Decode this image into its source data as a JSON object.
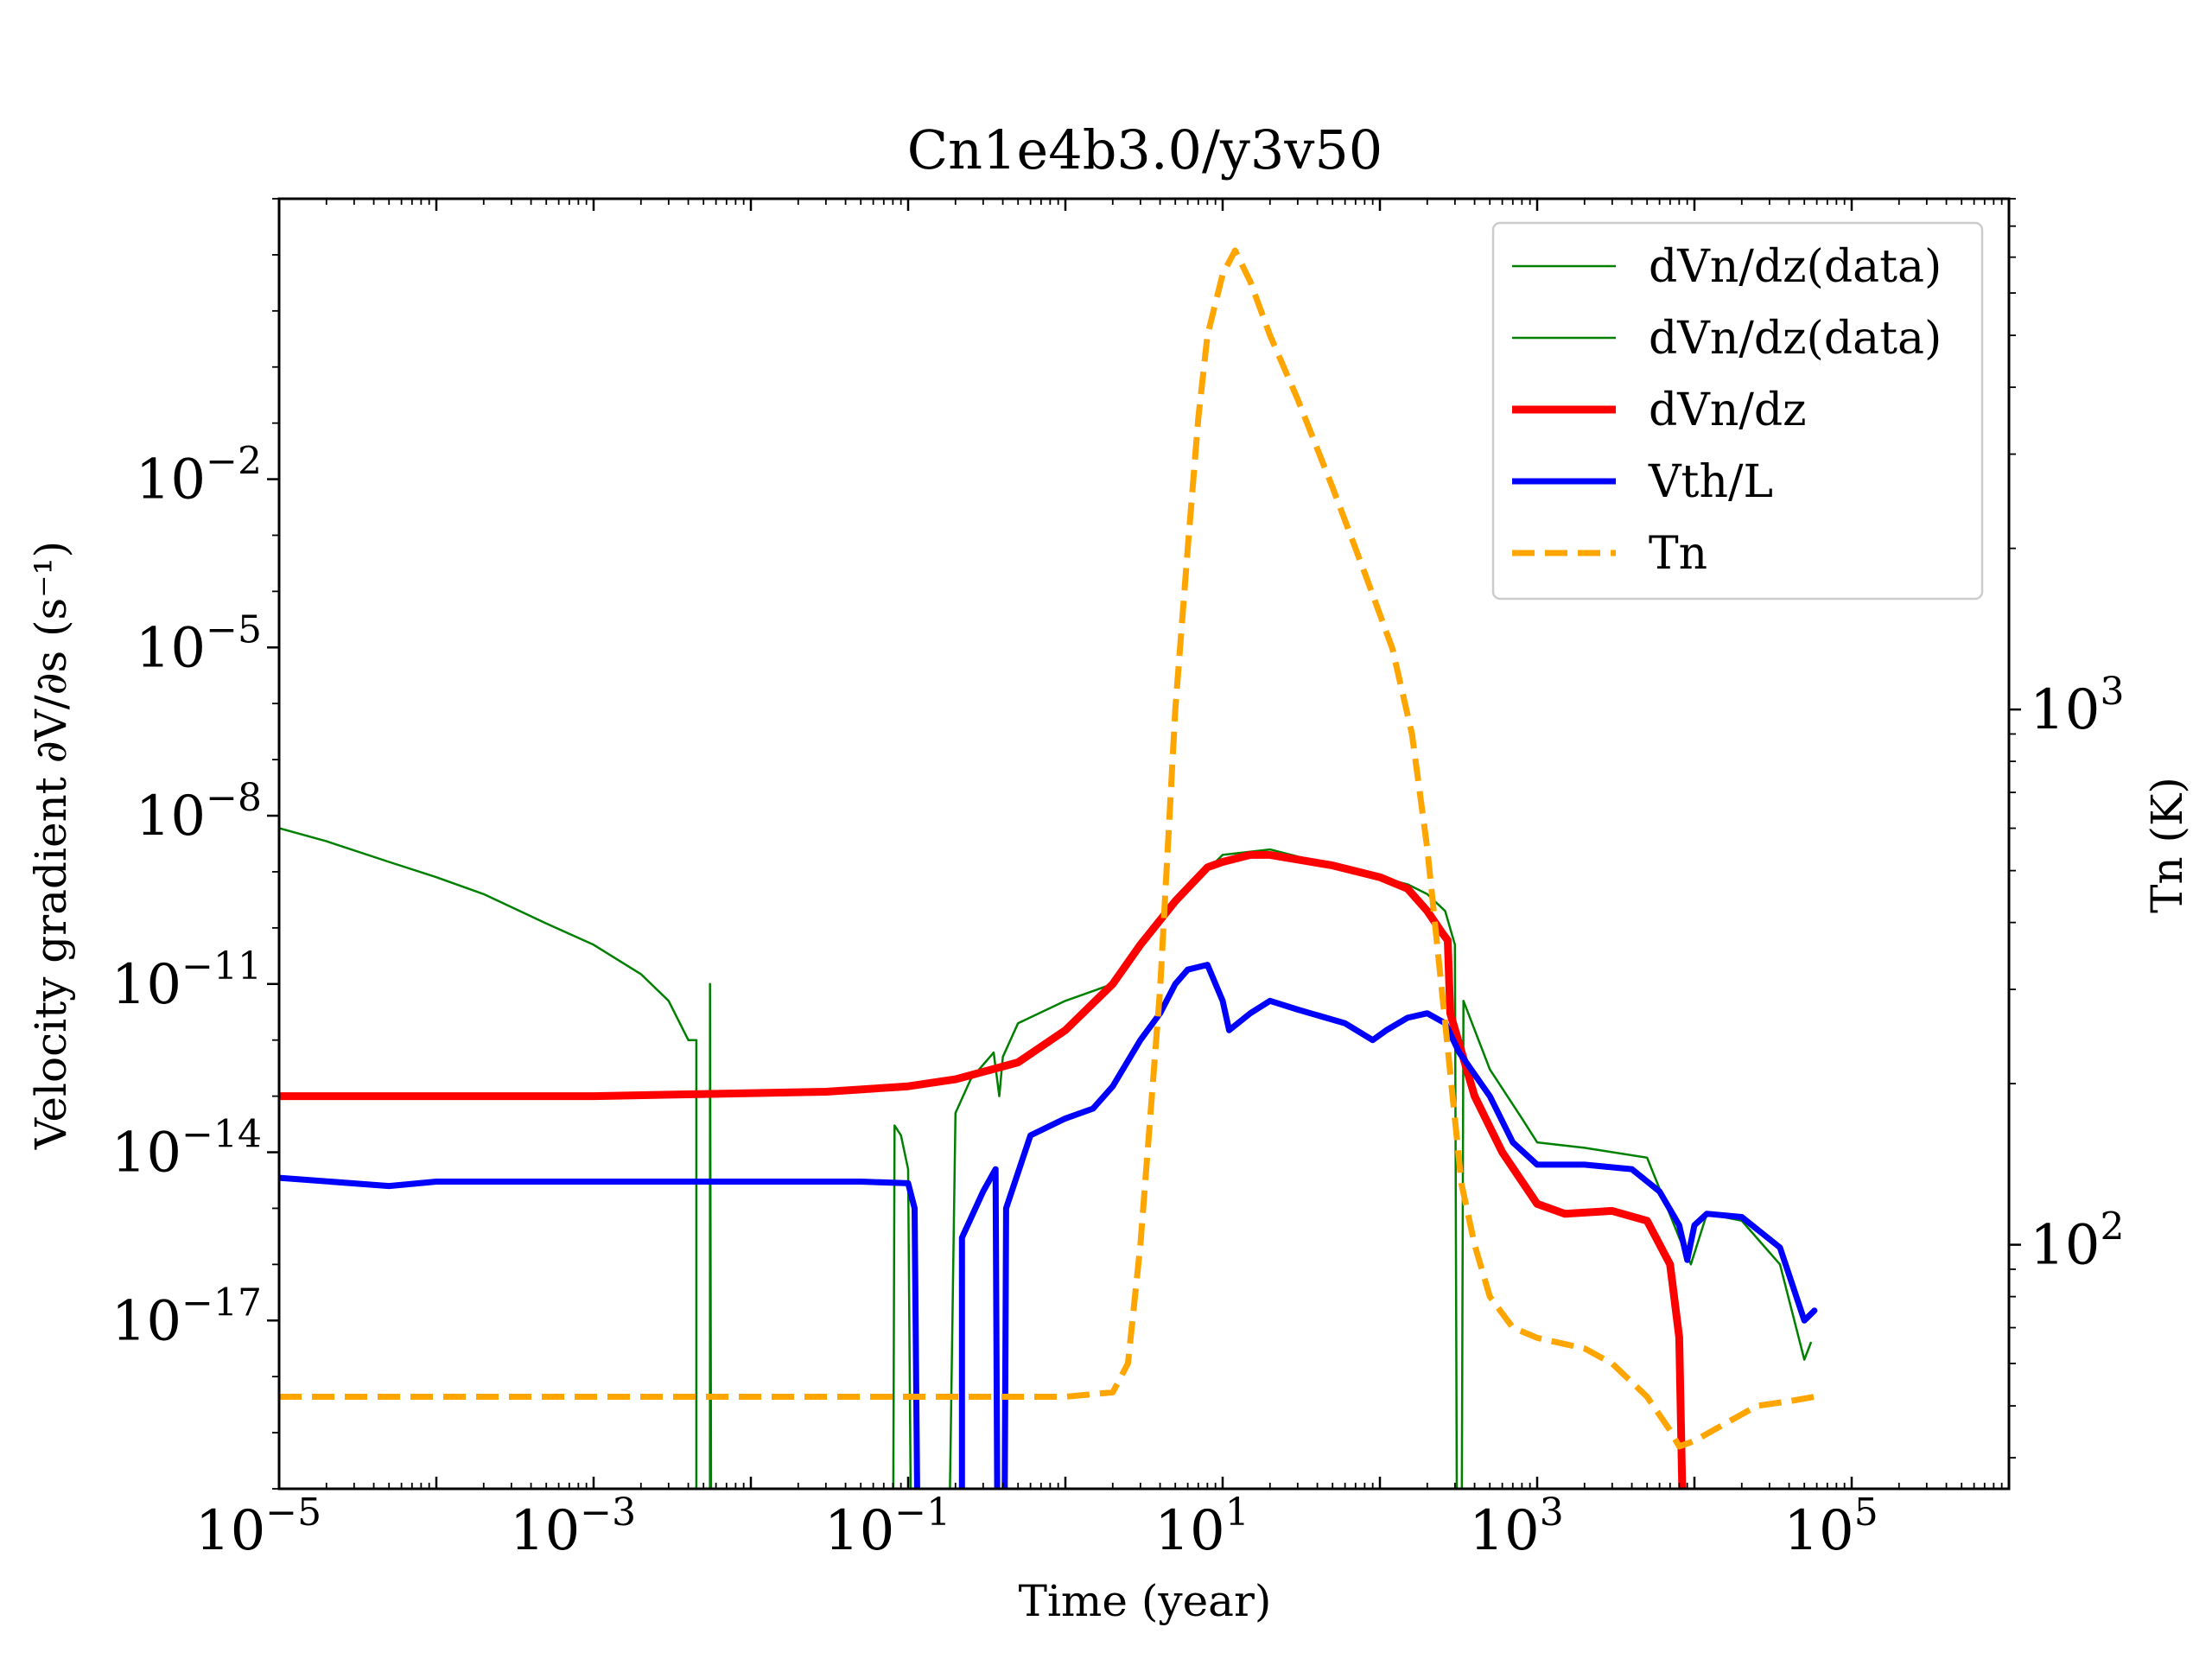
{
  "chart_data": {
    "type": "line",
    "title": "Cn1e4b3.0/y3v50",
    "xlabel": "Time (year)",
    "ylabel": "Velocity gradient ∂V/∂s (s⁻¹)",
    "y2label": "Tn (K)",
    "x_scale": "log",
    "y_scale": "log",
    "y2_scale": "log",
    "xlim": [
      1e-05,
      1000000.0
    ],
    "ylim": [
      1e-20,
      1000.0
    ],
    "y2lim": [
      35,
      9000
    ],
    "x_ticks": [
      {
        "value": 1e-05,
        "base": "10",
        "exp": "−5"
      },
      {
        "value": 0.001,
        "base": "10",
        "exp": "−3"
      },
      {
        "value": 0.1,
        "base": "10",
        "exp": "−1"
      },
      {
        "value": 10,
        "base": "10",
        "exp": "1"
      },
      {
        "value": 1000,
        "base": "10",
        "exp": "3"
      },
      {
        "value": 100000,
        "base": "10",
        "exp": "5"
      }
    ],
    "y_ticks": [
      {
        "value": 0.01,
        "base": "10",
        "exp": "−2"
      },
      {
        "value": 1e-05,
        "base": "10",
        "exp": "−5"
      },
      {
        "value": 1e-08,
        "base": "10",
        "exp": "−8"
      },
      {
        "value": 1e-11,
        "base": "10",
        "exp": "−11"
      },
      {
        "value": 1e-14,
        "base": "10",
        "exp": "−14"
      },
      {
        "value": 1e-17,
        "base": "10",
        "exp": "−17"
      }
    ],
    "y2_ticks": [
      {
        "value": 1000,
        "base": "10",
        "exp": "3"
      },
      {
        "value": 100,
        "base": "10",
        "exp": "2"
      }
    ],
    "legend_position": "top-right",
    "series": [
      {
        "name": "dVn/dz(data)",
        "axis": "left",
        "color": "#008000",
        "style": "solid",
        "width": 2.5,
        "points": [
          [
            1e-05,
            6e-09
          ],
          [
            2e-05,
            3.5e-09
          ],
          [
            5e-05,
            1.5e-09
          ],
          [
            0.0001,
            8e-10
          ],
          [
            0.0002,
            4e-10
          ],
          [
            0.0005,
            1.2e-10
          ],
          [
            0.001,
            5e-11
          ],
          [
            0.002,
            1.5e-11
          ],
          [
            0.003,
            5e-12
          ],
          [
            0.004,
            1e-12
          ],
          [
            0.0045,
            1e-12
          ],
          [
            0.0045,
            1e-22
          ],
          [
            0.0055,
            1e-22
          ],
          [
            0.0055,
            1e-11
          ],
          [
            0.0056,
            1e-22
          ],
          [
            0.08,
            1e-22
          ],
          [
            0.082,
            3e-14
          ],
          [
            0.09,
            2e-14
          ],
          [
            0.1,
            5e-15
          ],
          [
            0.105,
            1e-22
          ],
          [
            0.18,
            1e-22
          ],
          [
            0.2,
            5e-14
          ],
          [
            0.25,
            2e-13
          ],
          [
            0.35,
            6e-13
          ],
          [
            0.38,
            1e-13
          ],
          [
            0.4,
            5e-13
          ],
          [
            0.5,
            2e-12
          ],
          [
            1,
            5e-12
          ],
          [
            2,
            1e-11
          ],
          [
            3,
            6e-11
          ],
          [
            5,
            3e-10
          ],
          [
            10,
            2e-09
          ],
          [
            20,
            2.5e-09
          ],
          [
            50,
            1.3e-09
          ],
          [
            100,
            8e-10
          ],
          [
            150,
            6e-10
          ],
          [
            200,
            4e-10
          ],
          [
            260,
            2e-10
          ],
          [
            300,
            5e-11
          ],
          [
            310,
            1e-22
          ],
          [
            330,
            1e-22
          ],
          [
            340,
            5e-12
          ],
          [
            500,
            3e-13
          ],
          [
            800,
            4e-14
          ],
          [
            1000,
            1.5e-14
          ],
          [
            2000,
            1.2e-14
          ],
          [
            5000,
            8e-15
          ],
          [
            8000,
            3e-16
          ],
          [
            9500,
            1e-16
          ],
          [
            12000,
            8e-16
          ],
          [
            20000,
            6e-16
          ],
          [
            35000,
            1e-16
          ],
          [
            50000,
            2e-18
          ],
          [
            55000,
            4e-18
          ]
        ]
      },
      {
        "name": "dVn/dz(data)",
        "axis": "left",
        "color": "#008000",
        "style": "solid",
        "width": 2.5,
        "points": []
      },
      {
        "name": "dVn/dz",
        "axis": "left",
        "color": "#ff0000",
        "style": "solid",
        "width": 9,
        "points": [
          [
            1e-05,
            1e-13
          ],
          [
            0.001,
            1e-13
          ],
          [
            0.03,
            1.2e-13
          ],
          [
            0.1,
            1.5e-13
          ],
          [
            0.2,
            2e-13
          ],
          [
            0.5,
            4e-13
          ],
          [
            1,
            1.5e-12
          ],
          [
            2,
            1e-11
          ],
          [
            3,
            5e-11
          ],
          [
            5,
            3e-10
          ],
          [
            8,
            1.2e-09
          ],
          [
            10,
            1.5e-09
          ],
          [
            15,
            2e-09
          ],
          [
            20,
            2e-09
          ],
          [
            50,
            1.3e-09
          ],
          [
            100,
            8e-10
          ],
          [
            150,
            5e-10
          ],
          [
            200,
            2e-10
          ],
          [
            250,
            8e-11
          ],
          [
            270,
            6e-11
          ],
          [
            280,
            3e-12
          ],
          [
            400,
            1e-13
          ],
          [
            600,
            1e-14
          ],
          [
            1000,
            1.2e-15
          ],
          [
            1500,
            8e-16
          ],
          [
            3000,
            9e-16
          ],
          [
            5000,
            6e-16
          ],
          [
            7000,
            1e-16
          ],
          [
            8000,
            5e-18
          ],
          [
            8500,
            1e-21
          ]
        ]
      },
      {
        "name": "Vth/L",
        "axis": "left",
        "color": "#0000ff",
        "style": "solid",
        "width": 7,
        "points": [
          [
            1e-05,
            3.5e-15
          ],
          [
            5e-05,
            2.5e-15
          ],
          [
            0.0001,
            3e-15
          ],
          [
            0.001,
            3e-15
          ],
          [
            0.01,
            3e-15
          ],
          [
            0.05,
            3e-15
          ],
          [
            0.1,
            2.8e-15
          ],
          [
            0.11,
            1e-15
          ],
          [
            0.115,
            1e-21
          ],
          [
            0.22,
            1e-21
          ],
          [
            0.22,
            3e-16
          ],
          [
            0.3,
            2e-15
          ],
          [
            0.36,
            5e-15
          ],
          [
            0.37,
            1e-21
          ],
          [
            0.41,
            1e-21
          ],
          [
            0.42,
            1e-15
          ],
          [
            0.6,
            2e-14
          ],
          [
            1,
            4e-14
          ],
          [
            1.5,
            6e-14
          ],
          [
            2,
            1.5e-13
          ],
          [
            3,
            1e-12
          ],
          [
            4,
            3e-12
          ],
          [
            5,
            1e-11
          ],
          [
            6,
            1.8e-11
          ],
          [
            8,
            2.2e-11
          ],
          [
            10,
            5e-12
          ],
          [
            11,
            1.5e-12
          ],
          [
            15,
            3e-12
          ],
          [
            20,
            5e-12
          ],
          [
            30,
            3.5e-12
          ],
          [
            60,
            2e-12
          ],
          [
            90,
            1e-12
          ],
          [
            110,
            1.5e-12
          ],
          [
            150,
            2.5e-12
          ],
          [
            200,
            3e-12
          ],
          [
            260,
            2e-12
          ],
          [
            320,
            6e-13
          ],
          [
            500,
            1e-13
          ],
          [
            700,
            1.5e-14
          ],
          [
            1000,
            6e-15
          ],
          [
            2000,
            6e-15
          ],
          [
            4000,
            5e-15
          ],
          [
            6000,
            2e-15
          ],
          [
            8000,
            5e-16
          ],
          [
            9000,
            1.2e-16
          ],
          [
            10000,
            5e-16
          ],
          [
            12000,
            8e-16
          ],
          [
            20000,
            7e-16
          ],
          [
            35000,
            2e-16
          ],
          [
            50000,
            1e-17
          ],
          [
            58000,
            1.5e-17
          ]
        ]
      },
      {
        "name": "Tn",
        "axis": "right",
        "color": "#ffa500",
        "style": "dashed",
        "width": 7,
        "points": [
          [
            1e-05,
            52
          ],
          [
            0.1,
            52
          ],
          [
            1,
            52
          ],
          [
            2,
            53
          ],
          [
            2.5,
            60
          ],
          [
            3,
            100
          ],
          [
            4,
            300
          ],
          [
            5,
            1000
          ],
          [
            6,
            2000
          ],
          [
            7,
            3500
          ],
          [
            8,
            5000
          ],
          [
            10,
            6500
          ],
          [
            12,
            7200
          ],
          [
            15,
            6300
          ],
          [
            20,
            5000
          ],
          [
            30,
            3800
          ],
          [
            50,
            2600
          ],
          [
            80,
            1800
          ],
          [
            120,
            1300
          ],
          [
            160,
            900
          ],
          [
            200,
            550
          ],
          [
            260,
            260
          ],
          [
            330,
            130
          ],
          [
            400,
            100
          ],
          [
            500,
            80
          ],
          [
            700,
            70
          ],
          [
            1000,
            67
          ],
          [
            2000,
            64
          ],
          [
            3000,
            60
          ],
          [
            5000,
            52
          ],
          [
            7000,
            45
          ],
          [
            8000,
            42
          ],
          [
            10000,
            43
          ],
          [
            15000,
            46
          ],
          [
            25000,
            50
          ],
          [
            40000,
            51
          ],
          [
            58000,
            52
          ]
        ]
      }
    ]
  }
}
